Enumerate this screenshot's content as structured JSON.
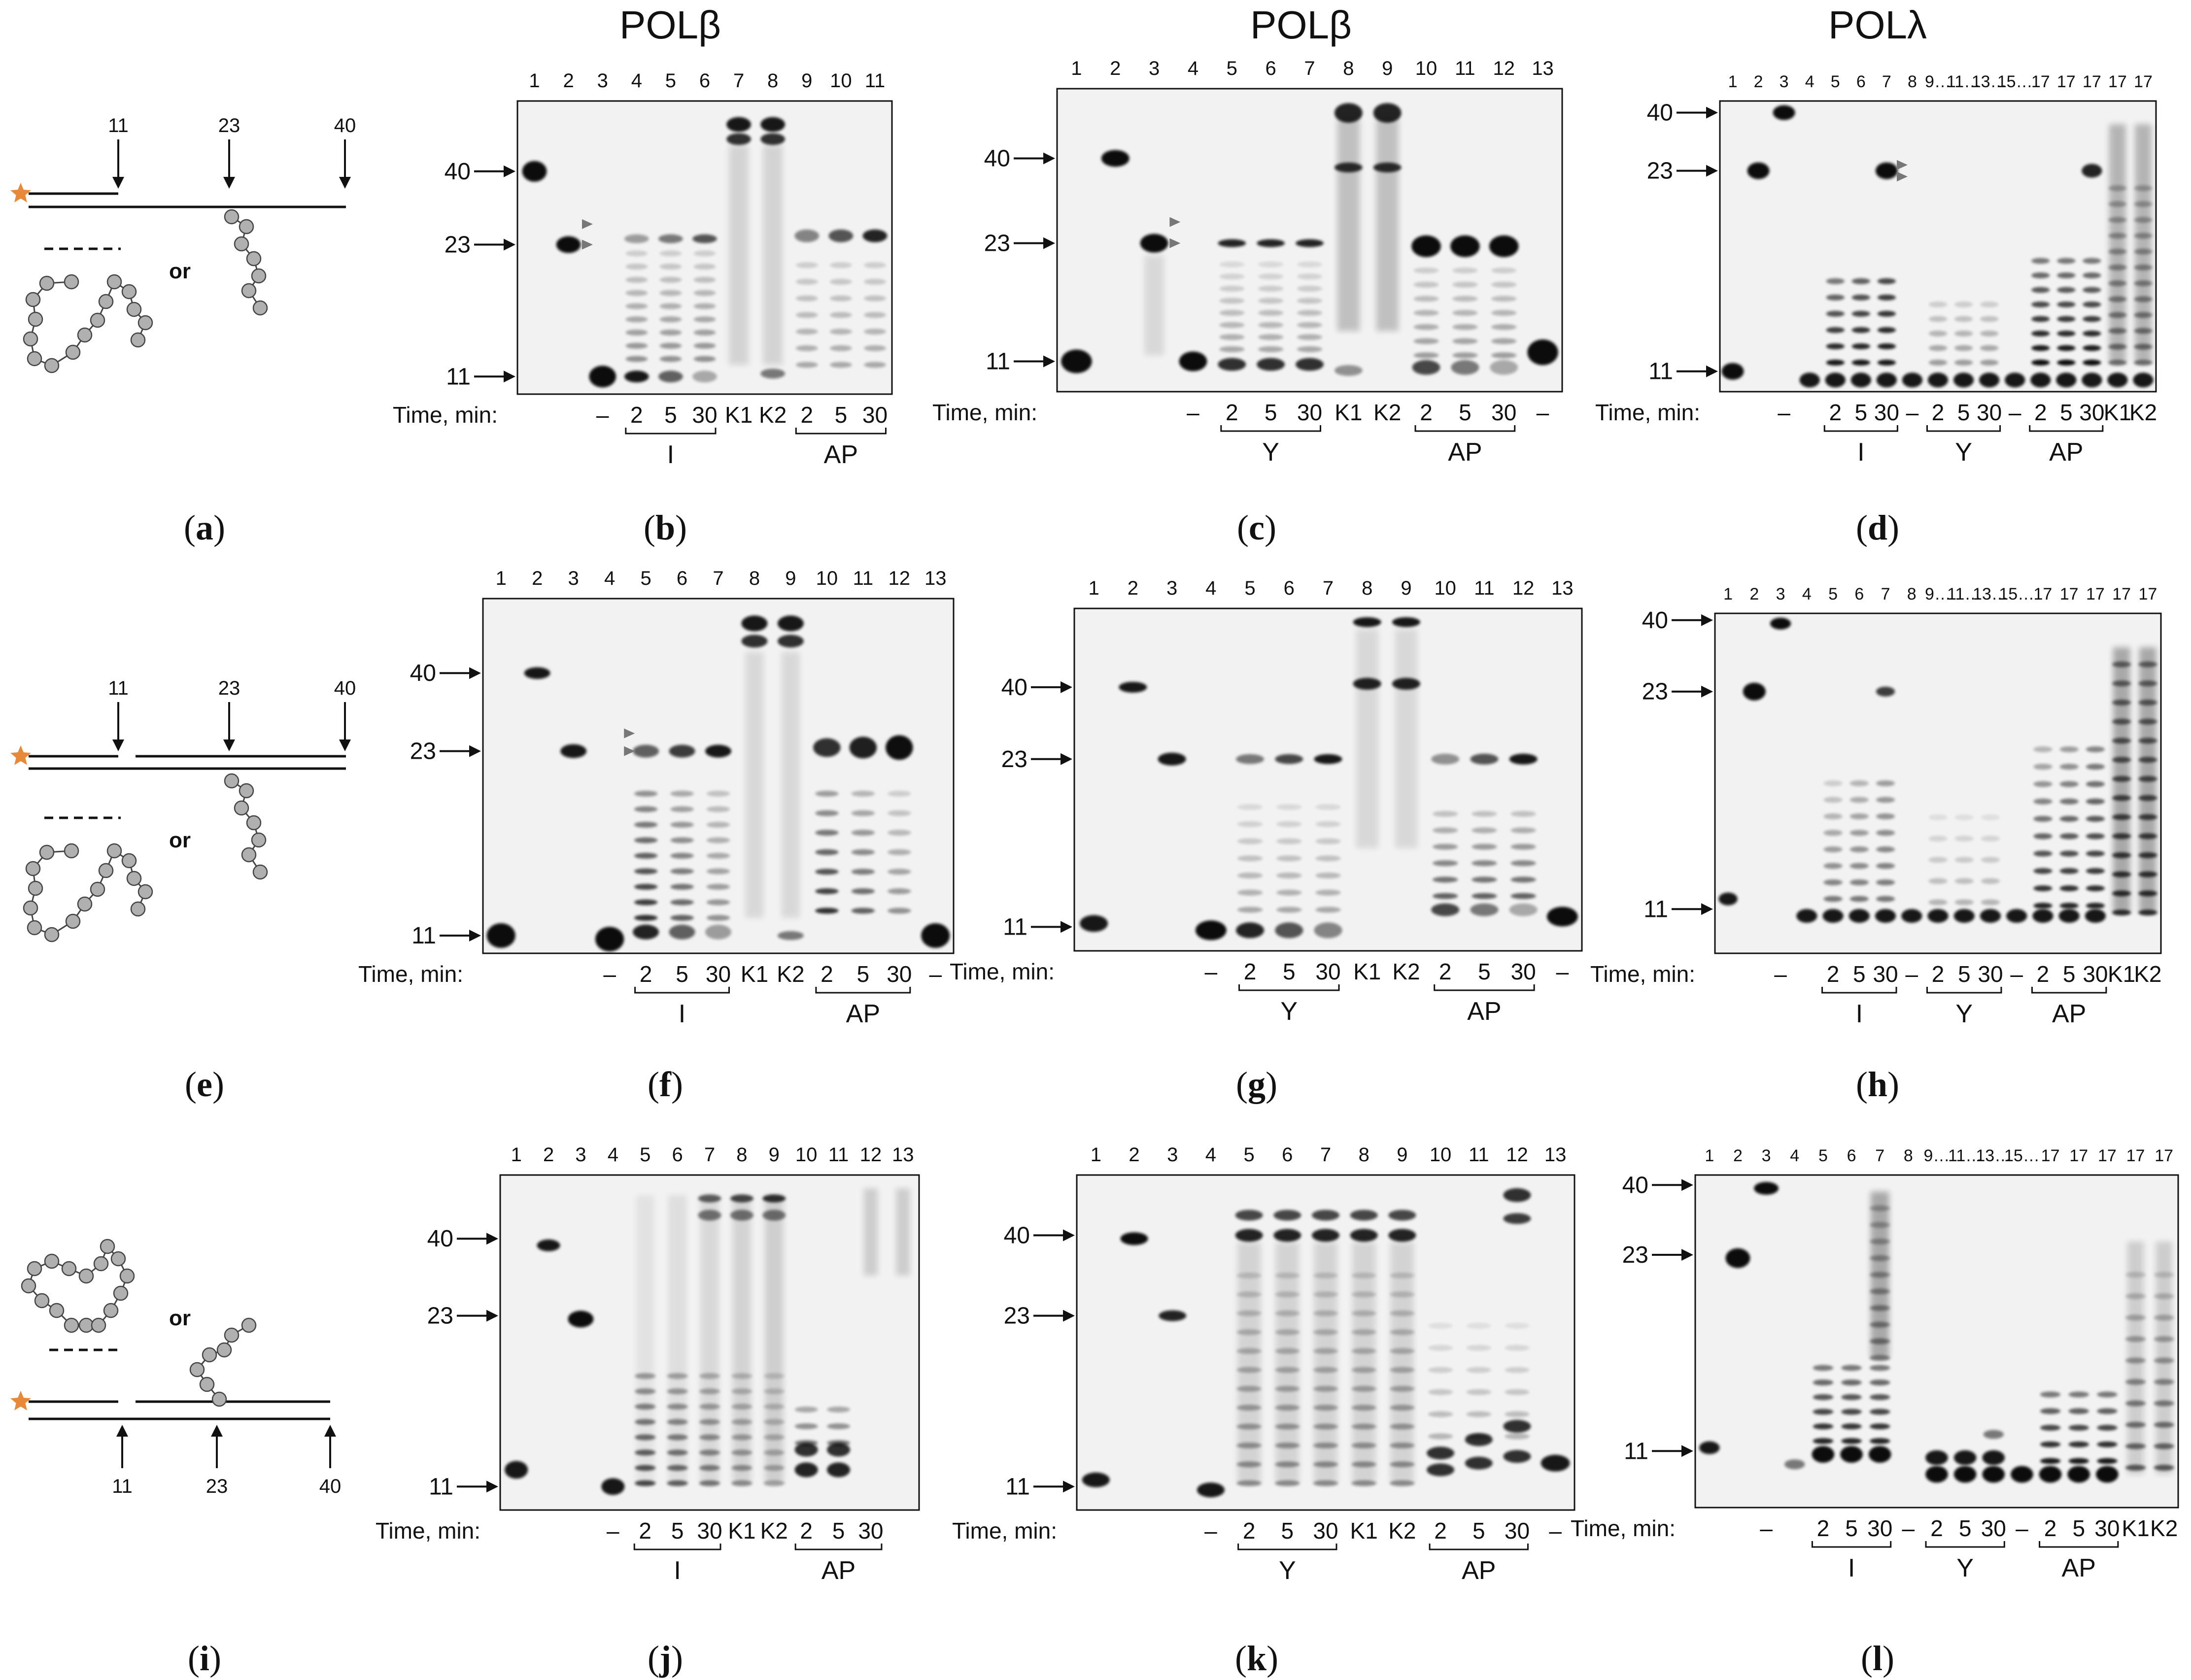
{
  "column_titles": [
    "POLβ",
    "POLβ",
    "POLλ"
  ],
  "panel_letters": [
    "a",
    "b",
    "c",
    "d",
    "e",
    "f",
    "g",
    "h",
    "i",
    "j",
    "k",
    "l"
  ],
  "schemes": {
    "or_label": "or",
    "top_marks": [
      "11",
      "23",
      "40"
    ],
    "bottom_marks": [
      "11",
      "23",
      "40"
    ]
  },
  "size_markers": [
    "40",
    "23",
    "11"
  ],
  "time_label": "Time, min:",
  "dash": "–",
  "times": [
    "2",
    "5",
    "30"
  ],
  "kinase": [
    "K1",
    "K2"
  ],
  "lesions": {
    "I": "I",
    "AP": "AP",
    "Y": "Y"
  },
  "lanes": {
    "eleven": [
      "1",
      "2",
      "3",
      "4",
      "5",
      "6",
      "7",
      "8",
      "9",
      "10",
      "11"
    ],
    "thirteen": [
      "1",
      "2",
      "3",
      "4",
      "5",
      "6",
      "7",
      "8",
      "9",
      "10",
      "11",
      "12",
      "13"
    ],
    "pol_lambda": [
      "1",
      "2",
      "3",
      "4",
      "5",
      "6",
      "7",
      "8",
      "9…",
      "11…",
      "13…",
      "15…",
      "17"
    ]
  },
  "colors": {
    "star": "#e8893a",
    "bead": "#b0b0b0",
    "band": "#000000",
    "gray_arrow": "#777777"
  }
}
